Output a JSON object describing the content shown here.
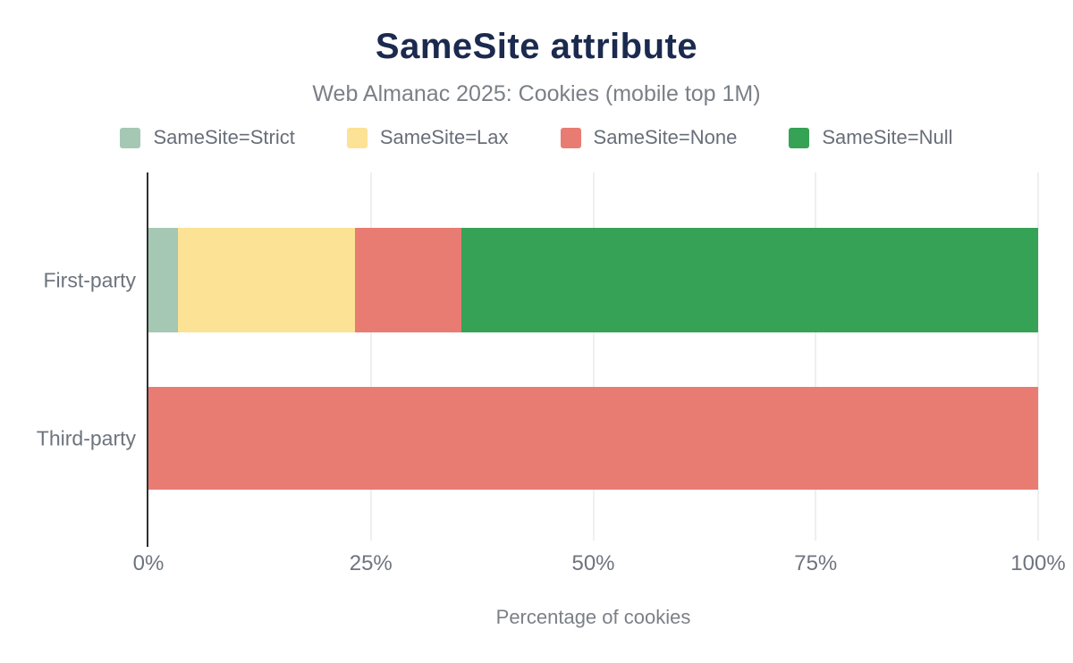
{
  "header": {
    "title": "SameSite attribute",
    "subtitle": "Web Almanac 2025: Cookies (mobile top 1M)"
  },
  "chart_data": {
    "type": "bar",
    "orientation": "horizontal",
    "stacked": true,
    "title": "SameSite attribute",
    "subtitle": "Web Almanac 2025: Cookies (mobile top 1M)",
    "categories": [
      "First-party",
      "Third-party"
    ],
    "series": [
      {
        "name": "SameSite=Strict",
        "color": "#a5c8b4",
        "values": [
          3.3,
          0
        ]
      },
      {
        "name": "SameSite=Lax",
        "color": "#fce294",
        "values": [
          19.9,
          0
        ]
      },
      {
        "name": "SameSite=None",
        "color": "#e87c72",
        "values": [
          12.0,
          100
        ]
      },
      {
        "name": "SameSite=Null",
        "color": "#35a255",
        "values": [
          64.8,
          0
        ]
      }
    ],
    "xlabel": "Percentage of cookies",
    "ylabel": "",
    "x_ticks": [
      "0%",
      "25%",
      "50%",
      "75%",
      "100%"
    ],
    "xlim": [
      0,
      100
    ],
    "legend_position": "top",
    "grid": "vertical"
  },
  "colors": {
    "background": "#ffffff",
    "title": "#1b2a4e",
    "subtitle": "#7b8087",
    "legend_text": "#686e78",
    "axis_text": "#6e747e",
    "axis_line": "#2f2f2f",
    "gridline": "#efefef"
  }
}
